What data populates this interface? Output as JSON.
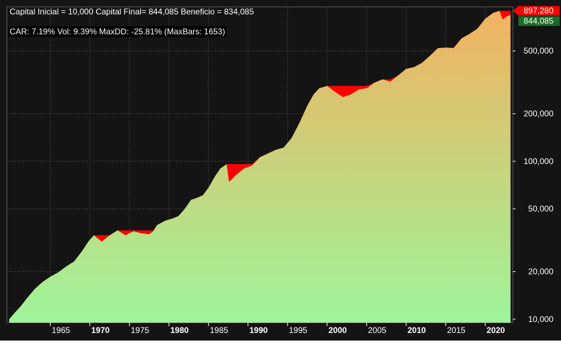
{
  "chart_data": {
    "type": "area",
    "title": "Capital Inicial = 10,000    Capital Final= 844,085    Beneficio = 834,085",
    "subtitle": "CAR: 7.19%    Vol: 9.39%    MaxDD: -25.81% (MaxBars: 1653)",
    "y_scale": "log",
    "ylim": [
      9500,
      950000
    ],
    "xlim": [
      1959.5,
      2023.5
    ],
    "x_ticks": [
      {
        "value": 1965,
        "label": "1965",
        "bold": false
      },
      {
        "value": 1970,
        "label": "1970",
        "bold": true
      },
      {
        "value": 1975,
        "label": "1975",
        "bold": false
      },
      {
        "value": 1980,
        "label": "1980",
        "bold": true
      },
      {
        "value": 1985,
        "label": "1985",
        "bold": false
      },
      {
        "value": 1990,
        "label": "1990",
        "bold": true
      },
      {
        "value": 1995,
        "label": "1995",
        "bold": false
      },
      {
        "value": 2000,
        "label": "2000",
        "bold": true
      },
      {
        "value": 2005,
        "label": "2005",
        "bold": false
      },
      {
        "value": 2010,
        "label": "2010",
        "bold": true
      },
      {
        "value": 2015,
        "label": "2015",
        "bold": false
      },
      {
        "value": 2020,
        "label": "2020",
        "bold": true
      }
    ],
    "y_ticks": [
      {
        "value": 10000,
        "label": "10,000"
      },
      {
        "value": 20000,
        "label": "20,000"
      },
      {
        "value": 50000,
        "label": "50,000"
      },
      {
        "value": 100000,
        "label": "100,000"
      },
      {
        "value": 200000,
        "label": "200,000"
      },
      {
        "value": 500000,
        "label": "500,000"
      }
    ],
    "grid": true,
    "series": [
      {
        "role": "equity",
        "points": [
          [
            1959.8,
            10000
          ],
          [
            1960.5,
            11000
          ],
          [
            1961.2,
            12000
          ],
          [
            1962.0,
            13500
          ],
          [
            1963.0,
            15500
          ],
          [
            1964.0,
            17200
          ],
          [
            1965.0,
            18600
          ],
          [
            1966.0,
            19800
          ],
          [
            1967.0,
            21600
          ],
          [
            1968.0,
            23200
          ],
          [
            1969.0,
            27000
          ],
          [
            1969.8,
            31000
          ],
          [
            1970.5,
            34000
          ],
          [
            1971.5,
            31000
          ],
          [
            1972.5,
            34000
          ],
          [
            1973.5,
            36500
          ],
          [
            1974.5,
            34000
          ],
          [
            1975.5,
            36000
          ],
          [
            1976.5,
            35000
          ],
          [
            1977.5,
            34500
          ],
          [
            1978.0,
            36000
          ],
          [
            1978.5,
            39500
          ],
          [
            1979.5,
            42000
          ],
          [
            1980.5,
            43500
          ],
          [
            1981.2,
            45000
          ],
          [
            1982.0,
            50000
          ],
          [
            1982.8,
            57000
          ],
          [
            1983.5,
            58500
          ],
          [
            1984.3,
            61000
          ],
          [
            1985.0,
            68000
          ],
          [
            1985.8,
            80000
          ],
          [
            1986.5,
            90000
          ],
          [
            1987.3,
            96000
          ],
          [
            1987.6,
            74000
          ],
          [
            1988.5,
            82000
          ],
          [
            1989.5,
            90000
          ],
          [
            1990.5,
            94000
          ],
          [
            1991.5,
            106000
          ],
          [
            1992.5,
            112000
          ],
          [
            1993.5,
            118000
          ],
          [
            1994.5,
            122000
          ],
          [
            1995.5,
            140000
          ],
          [
            1996.5,
            175000
          ],
          [
            1997.5,
            225000
          ],
          [
            1998.3,
            265000
          ],
          [
            1999.0,
            290000
          ],
          [
            2000.0,
            300000
          ],
          [
            2001.0,
            275000
          ],
          [
            2002.0,
            255000
          ],
          [
            2003.0,
            265000
          ],
          [
            2004.0,
            285000
          ],
          [
            2005.0,
            290000
          ],
          [
            2006.0,
            315000
          ],
          [
            2007.0,
            330000
          ],
          [
            2008.0,
            320000
          ],
          [
            2009.0,
            350000
          ],
          [
            2010.0,
            385000
          ],
          [
            2011.0,
            395000
          ],
          [
            2012.0,
            420000
          ],
          [
            2013.0,
            465000
          ],
          [
            2014.0,
            520000
          ],
          [
            2015.0,
            525000
          ],
          [
            2016.0,
            520000
          ],
          [
            2017.0,
            600000
          ],
          [
            2018.0,
            640000
          ],
          [
            2019.0,
            690000
          ],
          [
            2020.0,
            800000
          ],
          [
            2021.0,
            870000
          ],
          [
            2021.8,
            897280
          ],
          [
            2022.2,
            790000
          ],
          [
            2022.8,
            830000
          ],
          [
            2023.2,
            844085
          ]
        ]
      },
      {
        "role": "drawdown",
        "color": "#ff0000"
      }
    ],
    "markers": {
      "peak": {
        "label": "897,280",
        "value": 897280,
        "color": "#ff0000"
      },
      "last": {
        "label": "844,085",
        "value": 844085,
        "color": "#1e6b2a"
      }
    },
    "colors": {
      "background": "#141414",
      "fill_top": "#f2b260",
      "fill_bottom": "#9ef59a",
      "grid": "#5a5a5a",
      "text": "#ffffff"
    }
  }
}
